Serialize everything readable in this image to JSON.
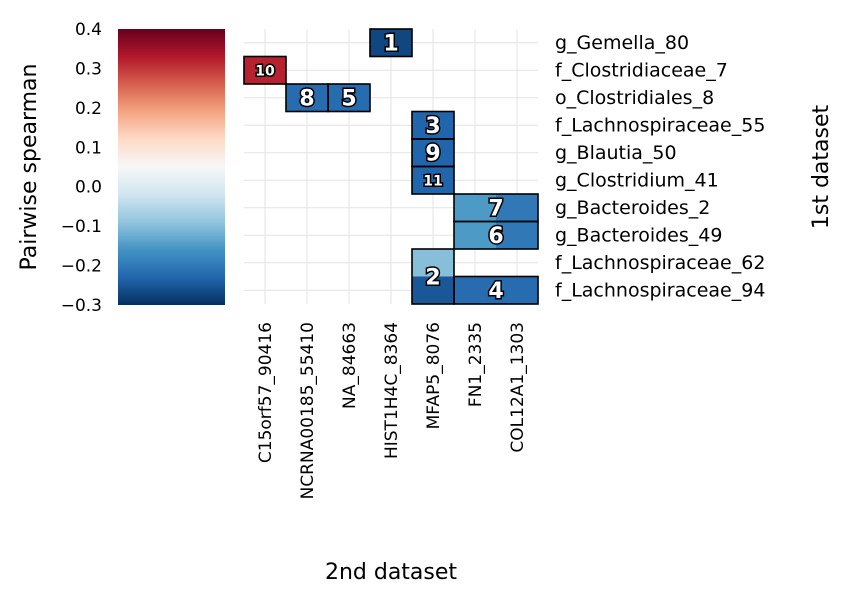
{
  "chart_data": {
    "type": "heatmap",
    "xlabel": "2nd dataset",
    "ylabel": "1st dataset",
    "colorbar": {
      "label": "Pairwise spearman",
      "range": [
        -0.3,
        0.4
      ],
      "ticks": [
        "0.4",
        "0.3",
        "0.2",
        "0.1",
        "0.0",
        "−0.1",
        "−0.2",
        "−0.3"
      ],
      "tick_values": [
        0.4,
        0.3,
        0.2,
        0.1,
        0.0,
        -0.1,
        -0.2,
        -0.3
      ],
      "colormap": "RdBu_r"
    },
    "x_categories": [
      "C15orf57_90416",
      "NCRNA00185_55410",
      "NA_84663",
      "HIST1H4C_8364",
      "MFAP5_8076",
      "FN1_2335",
      "COL12A1_1303"
    ],
    "y_categories": [
      "g_Gemella_80",
      "f_Clostridiaceae_7",
      "o_Clostridiales_8",
      "f_Lachnospiraceae_55",
      "g_Blautia_50",
      "g_Clostridium_41",
      "g_Bacteroides_2",
      "g_Bacteroides_49",
      "f_Lachnospiraceae_62",
      "f_Lachnospiraceae_94"
    ],
    "cells": [
      {
        "x": "HIST1H4C_8364",
        "y": "g_Gemella_80",
        "value": -0.27,
        "label": "1"
      },
      {
        "x": "C15orf57_90416",
        "y": "f_Clostridiaceae_7",
        "value": 0.32,
        "label": "10"
      },
      {
        "x": "NCRNA00185_55410",
        "y": "o_Clostridiales_8",
        "value": -0.22,
        "label": "8"
      },
      {
        "x": "NA_84663",
        "y": "o_Clostridiales_8",
        "value": -0.22,
        "label": "5"
      },
      {
        "x": "MFAP5_8076",
        "y": "f_Lachnospiraceae_55",
        "value": -0.23,
        "label": "3"
      },
      {
        "x": "MFAP5_8076",
        "y": "g_Blautia_50",
        "value": -0.23,
        "label": "9"
      },
      {
        "x": "MFAP5_8076",
        "y": "g_Clostridium_41",
        "value": -0.23,
        "label": "11"
      },
      {
        "x": "FN1_2335",
        "y": "g_Bacteroides_2",
        "value": -0.15,
        "label": ""
      },
      {
        "x": "COL12A1_1303",
        "y": "g_Bacteroides_2",
        "value": -0.2,
        "label": "7"
      },
      {
        "x": "FN1_2335",
        "y": "g_Bacteroides_49",
        "value": -0.15,
        "label": ""
      },
      {
        "x": "COL12A1_1303",
        "y": "g_Bacteroides_49",
        "value": -0.2,
        "label": "6"
      },
      {
        "x": "MFAP5_8076",
        "y": "f_Lachnospiraceae_62",
        "value": -0.1,
        "label": "2"
      },
      {
        "x": "MFAP5_8076",
        "y": "f_Lachnospiraceae_94",
        "value": -0.25,
        "label": ""
      },
      {
        "x": "FN1_2335",
        "y": "f_Lachnospiraceae_94",
        "value": -0.22,
        "label": "4"
      },
      {
        "x": "COL12A1_1303",
        "y": "f_Lachnospiraceae_94",
        "value": -0.22,
        "label": ""
      }
    ],
    "blocks": [
      {
        "label": "1",
        "x": [
          "HIST1H4C_8364"
        ],
        "y": [
          "g_Gemella_80"
        ]
      },
      {
        "label": "10",
        "x": [
          "C15orf57_90416"
        ],
        "y": [
          "f_Clostridiaceae_7"
        ]
      },
      {
        "label": "8",
        "x": [
          "NCRNA00185_55410"
        ],
        "y": [
          "o_Clostridiales_8"
        ]
      },
      {
        "label": "5",
        "x": [
          "NA_84663"
        ],
        "y": [
          "o_Clostridiales_8"
        ]
      },
      {
        "label": "3",
        "x": [
          "MFAP5_8076"
        ],
        "y": [
          "f_Lachnospiraceae_55"
        ]
      },
      {
        "label": "9",
        "x": [
          "MFAP5_8076"
        ],
        "y": [
          "g_Blautia_50"
        ]
      },
      {
        "label": "11",
        "x": [
          "MFAP5_8076"
        ],
        "y": [
          "g_Clostridium_41"
        ]
      },
      {
        "label": "7",
        "x": [
          "FN1_2335",
          "COL12A1_1303"
        ],
        "y": [
          "g_Bacteroides_2"
        ]
      },
      {
        "label": "6",
        "x": [
          "FN1_2335",
          "COL12A1_1303"
        ],
        "y": [
          "g_Bacteroides_49"
        ]
      },
      {
        "label": "2",
        "x": [
          "MFAP5_8076"
        ],
        "y": [
          "f_Lachnospiraceae_62",
          "f_Lachnospiraceae_94"
        ]
      },
      {
        "label": "4",
        "x": [
          "FN1_2335",
          "COL12A1_1303"
        ],
        "y": [
          "f_Lachnospiraceae_94"
        ]
      }
    ],
    "grid": true
  }
}
